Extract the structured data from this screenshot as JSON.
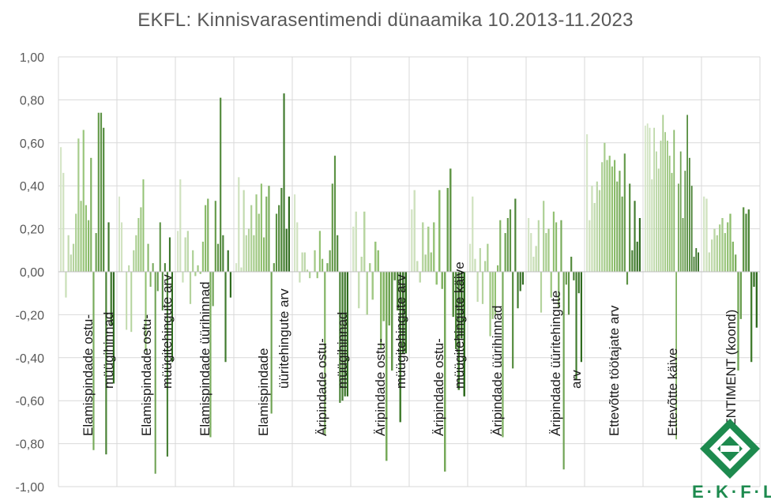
{
  "chart_data": {
    "type": "bar",
    "title": "EKFL: Kinnisvarasentimendi dünaamika 10.2013-11.2023",
    "xlabel": "",
    "ylabel": "",
    "ylim": [
      -1.0,
      1.0
    ],
    "yticks": [
      "1,00",
      "0,80",
      "0,60",
      "0,40",
      "0,20",
      "0,00",
      "-0,20",
      "-0,40",
      "-0,60",
      "-0,80",
      "-1,00"
    ],
    "grid": "horizontal",
    "legend": "none",
    "categories": [
      "Elamispindade ostu-müügihinnad",
      "Elamispindade ostu-müügitehingute arv",
      "Elamispindade üürihinnad",
      "Elamispindade üüritehingute arv",
      "Äripindade ostu-müügihinnad",
      "Äripindade ostu-müügitehingute arv",
      "Äripindade ostu-müügitehingute käive",
      "Äripindade üürihinnad",
      "Äripindade üüritehingute arv",
      "Ettevõtte töötajate arv",
      "Ettevõtte käive",
      "SENTIMENT (koond)"
    ],
    "colors": {
      "light": "#d6e6c8",
      "mid": "#8fbf6e",
      "dark": "#2f6b1f"
    },
    "groups": [
      [
        0.58,
        0.46,
        -0.12,
        0.17,
        0.08,
        0.13,
        0.27,
        0.62,
        0.33,
        0.66,
        0.31,
        0.24,
        0.53,
        -0.83,
        0.18,
        0.74,
        0.74,
        0.67,
        -0.85,
        0.23,
        -0.25,
        -0.52
      ],
      [
        0.35,
        0.23,
        0.0,
        -0.27,
        0.03,
        -0.28,
        0.1,
        0.17,
        0.25,
        0.3,
        0.43,
        -0.37,
        0.13,
        -0.07,
        0.04,
        -0.94,
        -0.09,
        0.23,
        -0.18,
        0.04,
        -0.86,
        0.16,
        -0.42
      ],
      [
        0.19,
        0.43,
        -0.05,
        0.16,
        0.19,
        -0.15,
        0.1,
        -0.02,
        0.03,
        -0.01,
        0.14,
        0.31,
        0.34,
        -0.77,
        -0.16,
        0.33,
        0.13,
        0.81,
        0.17,
        -0.42,
        0.1,
        -0.12
      ],
      [
        0.04,
        0.44,
        0.02,
        0.38,
        0.17,
        0.2,
        0.31,
        0.17,
        0.36,
        0.27,
        0.41,
        0.16,
        0.35,
        0.4,
        -0.66,
        0.04,
        0.27,
        0.31,
        0.39,
        0.83,
        0.2,
        0.35
      ],
      [
        0.36,
        0.23,
        -0.05,
        0.09,
        0.09,
        0.01,
        -0.03,
        0.0,
        0.1,
        -0.03,
        0.19,
        0.06,
        -0.76,
        0.04,
        0.1,
        0.41,
        0.54,
        0.17,
        -0.61,
        -0.6,
        -0.58,
        -0.58
      ],
      [
        0.21,
        0.28,
        -0.17,
        0.07,
        0.28,
        -0.2,
        0.04,
        -0.13,
        0.14,
        0.1,
        -0.36,
        -0.23,
        -0.88,
        -0.25,
        -0.46,
        -0.04,
        -0.18,
        -0.7,
        -0.38,
        -0.38
      ],
      [
        0.29,
        0.38,
        0.05,
        -0.05,
        0.23,
        0.08,
        0.21,
        0.09,
        0.23,
        -0.06,
        0.38,
        -0.08,
        -0.93,
        0.39,
        0.48,
        -0.21,
        -0.36,
        -0.55,
        -0.31,
        -0.58
      ],
      [
        0.13,
        0.35,
        0.06,
        -0.14,
        0.11,
        -0.15,
        0.05,
        0.13,
        -0.3,
        -0.22,
        -0.2,
        0.03,
        0.24,
        -0.77,
        0.18,
        0.25,
        0.29,
        -0.45,
        0.34,
        -0.17,
        -0.09,
        -0.06
      ],
      [
        0.25,
        0.18,
        0.07,
        0.12,
        0.24,
        -0.19,
        0.33,
        0.18,
        0.2,
        -0.12,
        0.28,
        0.23,
        -0.17,
        0.24,
        -0.92,
        -0.06,
        -0.2,
        0.07,
        -0.04,
        -0.5,
        -0.1,
        -0.42
      ],
      [
        0.64,
        0.24,
        0.4,
        0.32,
        0.42,
        0.38,
        0.51,
        0.6,
        0.52,
        0.54,
        0.49,
        0.52,
        0.42,
        0.47,
        0.35,
        0.55,
        -0.06,
        0.41,
        0.1,
        0.33,
        0.14,
        0.25
      ],
      [
        0.68,
        0.69,
        0.67,
        0.43,
        0.67,
        0.56,
        0.48,
        0.61,
        0.73,
        0.65,
        0.61,
        0.54,
        0.46,
        0.66,
        -0.78,
        0.41,
        0.56,
        0.25,
        0.47,
        0.73,
        0.53,
        0.4,
        0.07,
        0.11,
        0.09
      ],
      [
        0.35,
        0.34,
        0.09,
        0.15,
        0.2,
        0.17,
        0.22,
        0.25,
        0.18,
        0.23,
        0.27,
        0.14,
        0.08,
        -0.46,
        -0.22,
        0.3,
        0.27,
        0.29,
        -0.42,
        -0.07,
        -0.26
      ]
    ]
  },
  "logo": {
    "text": "E·K·F·L"
  }
}
